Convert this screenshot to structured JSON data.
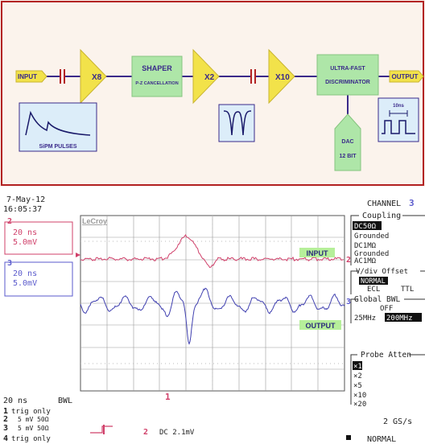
{
  "block_diagram": {
    "input_label": "INPUT",
    "output_label": "OUTPUT",
    "amp1_label": "X8",
    "shaper_title": "SHAPER",
    "shaper_subtitle": "P-Z CANCELLATION",
    "amp2_label": "X2",
    "amp3_label": "X10",
    "discriminator_line1": "ULTRA-FAST",
    "discriminator_line2": "DISCRIMINATOR",
    "dac_line1": "DAC",
    "dac_line2": "12 BIT",
    "sipm_label": "SiPM PULSES",
    "pulse_width_label": "10ns",
    "colors": {
      "border": "#b22222",
      "amp_fill": "#f2e24a",
      "block_fill": "#aee6a8",
      "wire": "#3a2a8a",
      "panel_fill": "#dcedf9"
    }
  },
  "scope": {
    "date": "7-May-12",
    "time": "16:05:37",
    "brand": "LeCroy",
    "ch2": {
      "number": "2",
      "timebase": "20 ns",
      "volts": "5.0mV",
      "color": "#d0406a"
    },
    "ch3": {
      "number": "3",
      "timebase": "20 ns",
      "volts": "5.0mV",
      "color": "#5a5acc"
    },
    "input_trace_label": "INPUT",
    "output_trace_label": "OUTPUT",
    "timebase_readout": "20 ns",
    "bwl": "BWL",
    "trigger_lines": [
      {
        "num": "1",
        "text": "trig only"
      },
      {
        "num": "2",
        "text": "5  mV  50Ω"
      },
      {
        "num": "3",
        "text": "5  mV  50Ω"
      },
      {
        "num": "4",
        "text": "trig only"
      }
    ],
    "trigger_source": "2",
    "trigger_text": "DC 2.1mV",
    "trigger_marker": "1",
    "sample_rate": "2 GS/s",
    "acq_mode": "NORMAL",
    "channel_title": "CHANNEL",
    "channel_number": "3",
    "coupling_title": "Coupling",
    "coupling_options": [
      "DC50Ω",
      "Grounded",
      "DC1MΩ",
      "Grounded",
      "AC1MΩ"
    ],
    "vdiv_title": "V/div Offset",
    "vdiv_selected": "NORMAL",
    "vdiv_left": "ECL",
    "vdiv_right": "TTL",
    "bwl_title": "Global BWL",
    "bwl_state": "OFF",
    "bwl_left": "25MHz",
    "bwl_right": "200MHz",
    "probe_title": "Probe Atten",
    "probe_options": [
      "×1",
      "×2",
      "×5",
      "×10",
      "×20"
    ]
  }
}
